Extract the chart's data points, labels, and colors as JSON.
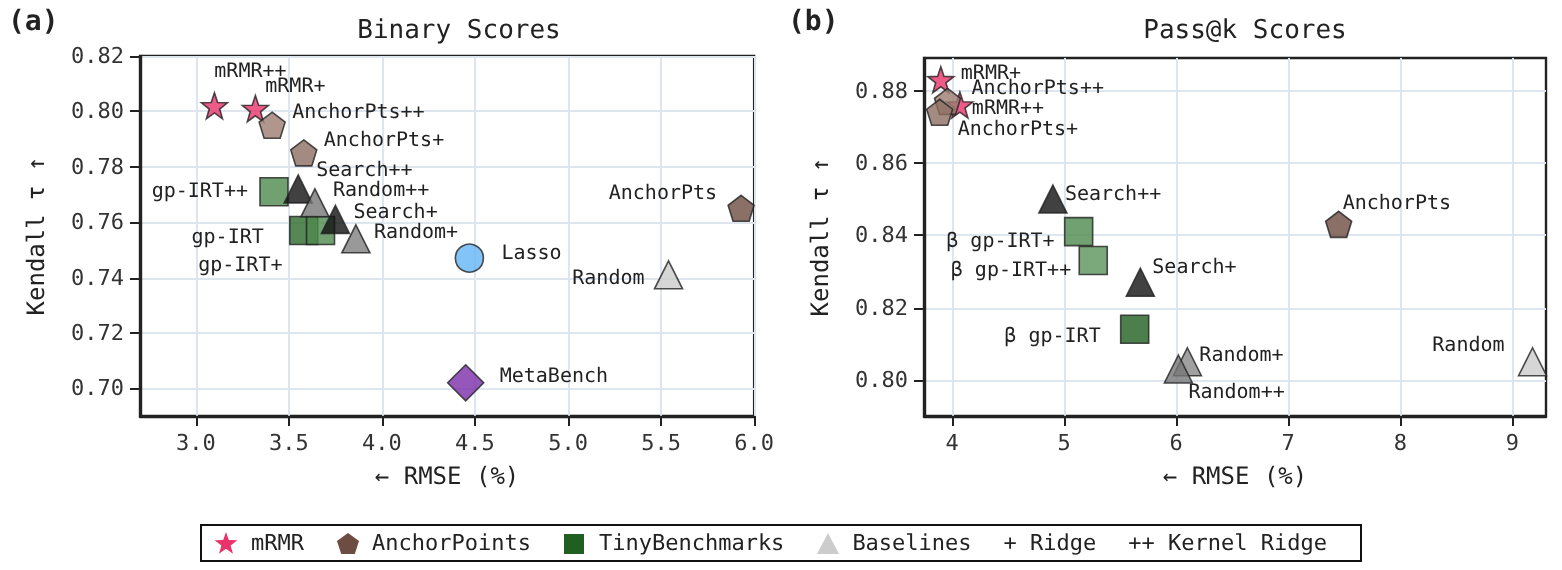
{
  "chart_data": [
    {
      "type": "scatter",
      "title": "Binary Scores",
      "xlabel": "← RMSE (%)",
      "ylabel": "Kendall τ ↑",
      "grid": true,
      "legend": "bottom",
      "xlim": [
        2.7,
        6.0
      ],
      "xticks": [
        {
          "value": 3,
          "label": "3.0"
        },
        {
          "value": 3.5,
          "label": "3.5"
        },
        {
          "value": 4,
          "label": "4.0"
        },
        {
          "value": 4.5,
          "label": "4.5"
        },
        {
          "value": 5,
          "label": "5.0"
        },
        {
          "value": 5.5,
          "label": "5.5"
        },
        {
          "value": 6,
          "label": "6.0"
        }
      ],
      "ylim": [
        0.69,
        0.82
      ],
      "yticks": [
        {
          "value": 0.7,
          "label": "0.70"
        },
        {
          "value": 0.72,
          "label": "0.72"
        },
        {
          "value": 0.74,
          "label": "0.74"
        },
        {
          "value": 0.76,
          "label": "0.76"
        },
        {
          "value": 0.78,
          "label": "0.78"
        },
        {
          "value": 0.8,
          "label": "0.80"
        },
        {
          "value": 0.82,
          "label": "0.82"
        }
      ],
      "series": [
        {
          "name": "mRMR",
          "marker": "star",
          "color": "#e8336b",
          "x": [
            3.1,
            3.32
          ],
          "values": [
            0.802,
            0.801
          ],
          "colors": [
            "#e8336b",
            "#e8336b"
          ]
        },
        {
          "name": "AnchorPoints",
          "color": "#6d4c41",
          "x": [
            3.41,
            3.58,
            5.93
          ],
          "values": [
            0.795,
            0.785,
            0.765
          ],
          "colors": [
            "#9c7c70",
            "#8d6e63",
            "#6d4c41"
          ]
        },
        {
          "name": "TinyBenchmarks",
          "marker": "square",
          "color": "#1f5f1f",
          "x": [
            3.42,
            3.58,
            3.67
          ],
          "values": [
            0.771,
            0.757,
            0.757
          ],
          "colors": [
            "#4e8a4e",
            "#2a6a2a",
            "#4e8a4e"
          ]
        },
        {
          "name": "Baselines",
          "marker": "triangle",
          "color": "#cccccc",
          "x": [
            3.55,
            3.64,
            3.75,
            3.86,
            5.54
          ],
          "values": [
            0.772,
            0.767,
            0.761,
            0.754,
            0.741
          ],
          "colors": [
            "#111111",
            "#777777",
            "#111111",
            "#808080",
            "#cccccc"
          ]
        },
        {
          "marker": "circle",
          "color": "#64b5f6",
          "x": [
            4.47
          ],
          "values": [
            0.747
          ]
        },
        {
          "marker": "diamond",
          "color": "#7b2da8",
          "x": [
            4.45
          ],
          "values": [
            0.702
          ]
        }
      ],
      "annotations": [
        "(a)",
        "+ Ridge",
        "++ Kernel Ridge",
        {
          "text": "mRMR++",
          "x": 3.1,
          "y": 0.802
        },
        {
          "text": "mRMR+",
          "x": 3.32,
          "y": 0.801
        },
        {
          "text": "AnchorPts++",
          "x": 3.41,
          "y": 0.795
        },
        {
          "text": "AnchorPts+",
          "x": 3.58,
          "y": 0.785
        },
        {
          "text": "gp-IRT++",
          "x": 3.42,
          "y": 0.771
        },
        {
          "text": "Search++",
          "x": 3.55,
          "y": 0.772
        },
        {
          "text": "Random++",
          "x": 3.64,
          "y": 0.767
        },
        {
          "text": "gp-IRT",
          "x": 3.58,
          "y": 0.757
        },
        {
          "text": "gp-IRT+",
          "x": 3.67,
          "y": 0.757
        },
        {
          "text": "Search+",
          "x": 3.75,
          "y": 0.761
        },
        {
          "text": "Random+",
          "x": 3.86,
          "y": 0.754
        },
        {
          "text": "Lasso",
          "x": 4.47,
          "y": 0.747
        },
        {
          "text": "AnchorPts",
          "x": 5.93,
          "y": 0.765
        },
        {
          "text": "Random",
          "x": 5.54,
          "y": 0.741
        },
        {
          "text": "MetaBench",
          "x": 4.45,
          "y": 0.702
        }
      ]
    },
    {
      "type": "scatter",
      "title": "Pass@k Scores",
      "xlabel": "← RMSE (%)",
      "ylabel": "Kendall τ ↑",
      "grid": true,
      "xlim": [
        3.75,
        9.3
      ],
      "xticks": [
        4,
        5,
        6,
        7,
        8,
        9
      ],
      "ylim": [
        0.79,
        0.889
      ],
      "yticks": [
        {
          "value": 0.8,
          "label": "0.80"
        },
        {
          "value": 0.82,
          "label": "0.82"
        },
        {
          "value": 0.84,
          "label": "0.84"
        },
        {
          "value": 0.86,
          "label": "0.86"
        },
        {
          "value": 0.88,
          "label": "0.88"
        }
      ],
      "series": [
        {
          "marker": "star",
          "color": "#e8336b",
          "x": [
            3.9,
            4.07
          ],
          "values": [
            0.883,
            0.876
          ],
          "colors": [
            "#e8336b",
            "#e8336b"
          ]
        },
        {
          "color": "#6d4c41",
          "x": [
            3.96,
            3.89,
            7.45
          ],
          "values": [
            0.877,
            0.874,
            0.843
          ],
          "colors": [
            "#9c7c70",
            "#8d6e63",
            "#6d4c41"
          ]
        },
        {
          "marker": "square",
          "color": "#1f5f1f",
          "x": [
            5.13,
            5.26,
            5.63
          ],
          "values": [
            0.841,
            0.833,
            0.814
          ],
          "colors": [
            "#4e8a4e",
            "#5a945a",
            "#1f5f1f"
          ]
        },
        {
          "marker": "triangle",
          "color": "#cccccc",
          "x": [
            4.9,
            5.68,
            6.1,
            6.02,
            9.18
          ],
          "values": [
            0.85,
            0.827,
            0.805,
            0.803,
            0.805
          ],
          "colors": [
            "#111111",
            "#111111",
            "#888888",
            "#777777",
            "#cccccc"
          ]
        }
      ],
      "annotations": [
        "(b)",
        {
          "text": "mRMR+",
          "x": 3.9,
          "y": 0.883
        },
        {
          "text": "AnchorPts++",
          "x": 3.96,
          "y": 0.877
        },
        {
          "text": "mRMR++",
          "x": 4.07,
          "y": 0.876
        },
        {
          "text": "AnchorPts+",
          "x": 3.89,
          "y": 0.874
        },
        {
          "text": "Search++",
          "x": 4.9,
          "y": 0.85
        },
        {
          "text": "β gp-IRT+",
          "x": 5.13,
          "y": 0.841
        },
        {
          "text": "β gp-IRT++",
          "x": 5.26,
          "y": 0.833
        },
        {
          "text": "Search+",
          "x": 5.68,
          "y": 0.827
        },
        {
          "text": "β gp-IRT",
          "x": 5.63,
          "y": 0.814
        },
        {
          "text": "Random+",
          "x": 6.1,
          "y": 0.805
        },
        {
          "text": "Random++",
          "x": 6.02,
          "y": 0.803
        },
        {
          "text": "AnchorPts",
          "x": 7.45,
          "y": 0.843
        },
        {
          "text": "Random",
          "x": 9.18,
          "y": 0.805
        }
      ]
    }
  ]
}
